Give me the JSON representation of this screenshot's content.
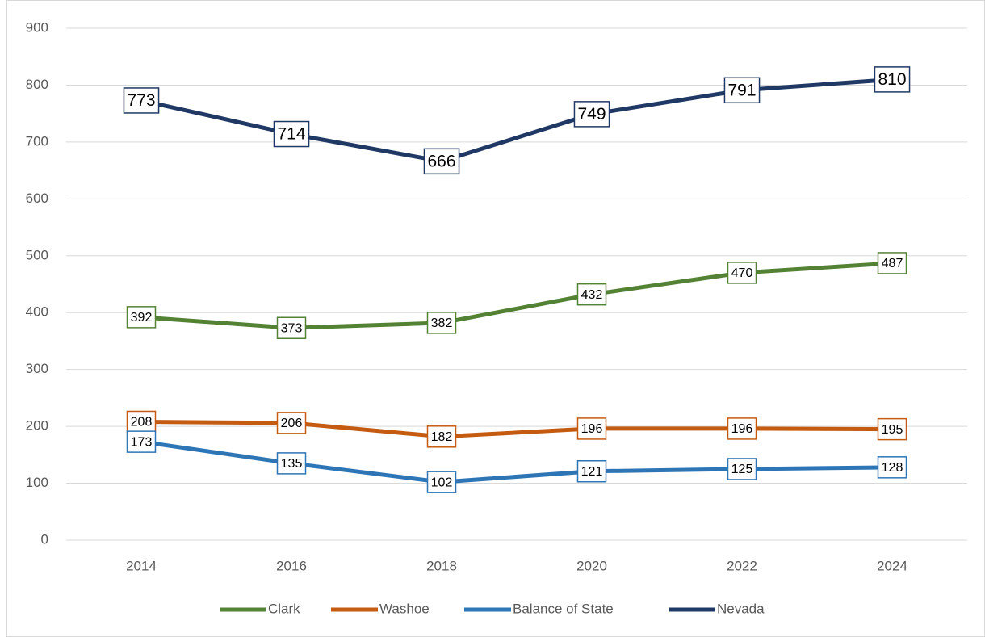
{
  "chart_data": {
    "type": "line",
    "categories": [
      "2014",
      "2016",
      "2018",
      "2020",
      "2022",
      "2024"
    ],
    "series": [
      {
        "name": "Clark",
        "color": "#548235",
        "values": [
          392,
          373,
          382,
          432,
          470,
          487
        ]
      },
      {
        "name": "Washoe",
        "color": "#c55a11",
        "values": [
          208,
          206,
          182,
          196,
          196,
          195
        ]
      },
      {
        "name": "Balance of State",
        "color": "#2e75b6",
        "values": [
          173,
          135,
          102,
          121,
          125,
          128
        ]
      },
      {
        "name": "Nevada",
        "color": "#203864",
        "values": [
          773,
          714,
          666,
          749,
          791,
          810
        ]
      }
    ],
    "ylim": [
      0,
      900
    ],
    "yticks": [
      0,
      100,
      200,
      300,
      400,
      500,
      600,
      700,
      800,
      900
    ],
    "grid": true,
    "legend": "bottom"
  }
}
